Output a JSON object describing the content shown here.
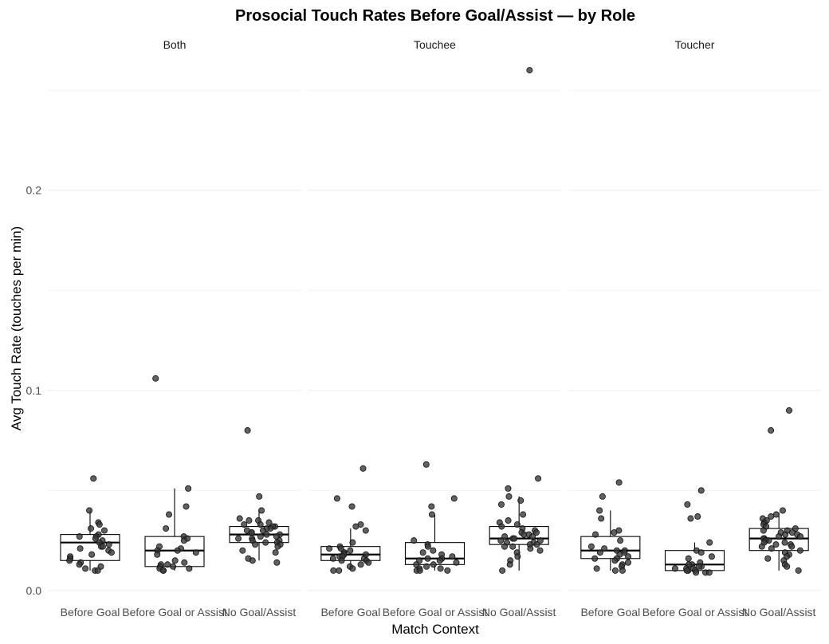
{
  "chart_data": {
    "type": "box",
    "title": "Prosocial Touch Rates Before Goal/Assist — by Role",
    "xlabel": "Match Context",
    "ylabel": "Avg Touch Rate (touches per min)",
    "ylim": [
      -0.006,
      0.268
    ],
    "y_ticks": [
      0.0,
      0.1,
      0.2
    ],
    "y_tick_labels": [
      "0.0",
      "0.1",
      "0.2"
    ],
    "y_minor_ticks": [
      0.05,
      0.15,
      0.25
    ],
    "grid": true,
    "categories": [
      "Before Goal",
      "Before Goal or Assist",
      "No Goal/Assist"
    ],
    "panels": [
      {
        "label": "Both",
        "boxes": [
          {
            "category": "Before Goal",
            "q1": 0.015,
            "median": 0.024,
            "q3": 0.028,
            "whisker_low": 0.01,
            "whisker_high": 0.04,
            "points": [
              0.056,
              0.04,
              0.034,
              0.033,
              0.031,
              0.03,
              0.028,
              0.027,
              0.026,
              0.025,
              0.024,
              0.023,
              0.022,
              0.021,
              0.02,
              0.019,
              0.018,
              0.017,
              0.016,
              0.015,
              0.014,
              0.013,
              0.012,
              0.011,
              0.01,
              0.01,
              0.027,
              0.022
            ]
          },
          {
            "category": "Before Goal or Assist",
            "q1": 0.012,
            "median": 0.02,
            "q3": 0.027,
            "whisker_low": 0.01,
            "whisker_high": 0.051,
            "points": [
              0.106,
              0.051,
              0.042,
              0.038,
              0.031,
              0.027,
              0.026,
              0.025,
              0.022,
              0.021,
              0.02,
              0.02,
              0.019,
              0.018,
              0.015,
              0.014,
              0.013,
              0.013,
              0.012,
              0.012,
              0.011,
              0.011,
              0.01,
              0.01
            ]
          },
          {
            "category": "No Goal/Assist",
            "q1": 0.024,
            "median": 0.028,
            "q3": 0.032,
            "whisker_low": 0.015,
            "whisker_high": 0.04,
            "points": [
              0.08,
              0.047,
              0.04,
              0.036,
              0.035,
              0.035,
              0.034,
              0.033,
              0.033,
              0.032,
              0.032,
              0.031,
              0.031,
              0.03,
              0.03,
              0.029,
              0.029,
              0.028,
              0.028,
              0.027,
              0.027,
              0.026,
              0.026,
              0.025,
              0.025,
              0.024,
              0.024,
              0.023,
              0.023,
              0.022,
              0.02,
              0.019,
              0.016,
              0.015,
              0.014
            ]
          }
        ]
      },
      {
        "label": "Touchee",
        "boxes": [
          {
            "category": "Before Goal",
            "q1": 0.015,
            "median": 0.018,
            "q3": 0.022,
            "whisker_low": 0.01,
            "whisker_high": 0.031,
            "points": [
              0.061,
              0.046,
              0.042,
              0.033,
              0.032,
              0.03,
              0.024,
              0.022,
              0.021,
              0.021,
              0.02,
              0.019,
              0.019,
              0.018,
              0.018,
              0.017,
              0.017,
              0.016,
              0.016,
              0.015,
              0.015,
              0.014,
              0.013,
              0.012,
              0.011,
              0.01,
              0.01
            ]
          },
          {
            "category": "Before Goal or Assist",
            "q1": 0.013,
            "median": 0.016,
            "q3": 0.024,
            "whisker_low": 0.01,
            "whisker_high": 0.038,
            "points": [
              0.063,
              0.046,
              0.042,
              0.038,
              0.025,
              0.023,
              0.022,
              0.02,
              0.019,
              0.018,
              0.017,
              0.016,
              0.016,
              0.015,
              0.015,
              0.014,
              0.013,
              0.013,
              0.012,
              0.011,
              0.011,
              0.01,
              0.01,
              0.01
            ]
          },
          {
            "category": "No Goal/Assist",
            "q1": 0.023,
            "median": 0.026,
            "q3": 0.032,
            "whisker_low": 0.01,
            "whisker_high": 0.047,
            "points": [
              0.26,
              0.056,
              0.051,
              0.047,
              0.045,
              0.043,
              0.038,
              0.035,
              0.034,
              0.033,
              0.032,
              0.031,
              0.03,
              0.029,
              0.029,
              0.028,
              0.028,
              0.027,
              0.027,
              0.026,
              0.026,
              0.025,
              0.025,
              0.024,
              0.024,
              0.023,
              0.023,
              0.022,
              0.022,
              0.021,
              0.02,
              0.019,
              0.017,
              0.015,
              0.013,
              0.01
            ]
          }
        ]
      },
      {
        "label": "Toucher",
        "boxes": [
          {
            "category": "Before Goal",
            "q1": 0.016,
            "median": 0.02,
            "q3": 0.027,
            "whisker_low": 0.01,
            "whisker_high": 0.04,
            "points": [
              0.054,
              0.047,
              0.04,
              0.036,
              0.03,
              0.029,
              0.028,
              0.025,
              0.022,
              0.021,
              0.02,
              0.02,
              0.019,
              0.019,
              0.018,
              0.017,
              0.016,
              0.016,
              0.015,
              0.014,
              0.013,
              0.012,
              0.011,
              0.01,
              0.01
            ]
          },
          {
            "category": "Before Goal or Assist",
            "q1": 0.01,
            "median": 0.013,
            "q3": 0.02,
            "whisker_low": 0.009,
            "whisker_high": 0.024,
            "points": [
              0.05,
              0.043,
              0.037,
              0.036,
              0.024,
              0.02,
              0.019,
              0.017,
              0.016,
              0.014,
              0.013,
              0.013,
              0.012,
              0.012,
              0.011,
              0.011,
              0.011,
              0.01,
              0.01,
              0.01,
              0.009,
              0.009,
              0.009
            ]
          },
          {
            "category": "No Goal/Assist",
            "q1": 0.02,
            "median": 0.026,
            "q3": 0.031,
            "whisker_low": 0.01,
            "whisker_high": 0.039,
            "points": [
              0.09,
              0.08,
              0.04,
              0.038,
              0.037,
              0.036,
              0.035,
              0.034,
              0.033,
              0.032,
              0.031,
              0.03,
              0.03,
              0.029,
              0.029,
              0.028,
              0.028,
              0.027,
              0.027,
              0.026,
              0.026,
              0.025,
              0.025,
              0.024,
              0.024,
              0.023,
              0.023,
              0.022,
              0.022,
              0.021,
              0.02,
              0.019,
              0.018,
              0.017,
              0.016,
              0.015,
              0.013,
              0.012,
              0.01
            ]
          }
        ]
      }
    ]
  }
}
